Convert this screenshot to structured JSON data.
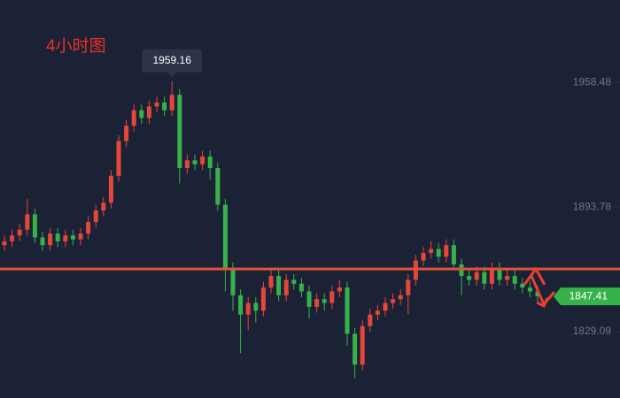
{
  "chart_data": {
    "type": "candlestick",
    "title": "4小时图",
    "open": [
      1874,
      1876,
      1879,
      1882,
      1890,
      1878,
      1874,
      1880,
      1876,
      1879,
      1877,
      1880,
      1886,
      1892,
      1896,
      1910,
      1928,
      1936,
      1944,
      1940,
      1946,
      1948,
      1944,
      1952,
      1914,
      1918,
      1916,
      1920,
      1914,
      1895,
      1862,
      1848,
      1838,
      1844,
      1840,
      1852,
      1858,
      1848,
      1856,
      1854,
      1850,
      1842,
      1846,
      1844,
      1850,
      1852,
      1828,
      1812,
      1832,
      1838,
      1840,
      1844,
      1846,
      1848,
      1856,
      1866,
      1870,
      1872,
      1868,
      1874,
      1864,
      1858,
      1856,
      1860,
      1854,
      1862,
      1856,
      1858,
      1854,
      1852,
      1850
    ],
    "high": [
      1879,
      1882,
      1885,
      1898,
      1893,
      1881,
      1883,
      1883,
      1882,
      1882,
      1883,
      1889,
      1895,
      1899,
      1913,
      1931,
      1939,
      1947,
      1947,
      1949,
      1951,
      1951,
      1959.16,
      1955,
      1921,
      1921,
      1923,
      1923,
      1917,
      1898,
      1865,
      1851,
      1847,
      1847,
      1855,
      1862,
      1861,
      1859,
      1859,
      1857,
      1853,
      1849,
      1849,
      1853,
      1856,
      1855,
      1831,
      1835,
      1841,
      1843,
      1847,
      1849,
      1851,
      1859,
      1869,
      1873,
      1876,
      1875,
      1877,
      1877,
      1867,
      1861,
      1863,
      1863,
      1865,
      1865,
      1861,
      1861,
      1857,
      1855,
      1853
    ],
    "low": [
      1871,
      1873,
      1876,
      1879,
      1875,
      1871,
      1871,
      1873,
      1873,
      1874,
      1874,
      1877,
      1883,
      1889,
      1893,
      1907,
      1925,
      1933,
      1937,
      1937,
      1943,
      1941,
      1941,
      1906,
      1911,
      1913,
      1913,
      1908,
      1892,
      1850,
      1840,
      1818,
      1830,
      1834,
      1837,
      1849,
      1845,
      1845,
      1851,
      1847,
      1836,
      1839,
      1840,
      1841,
      1847,
      1822,
      1805,
      1809,
      1829,
      1835,
      1837,
      1841,
      1843,
      1838,
      1853,
      1863,
      1867,
      1865,
      1865,
      1861,
      1848,
      1853,
      1853,
      1851,
      1851,
      1853,
      1853,
      1851,
      1849,
      1847,
      1844
    ],
    "close": [
      1876,
      1879,
      1882,
      1890,
      1878,
      1874,
      1880,
      1876,
      1879,
      1877,
      1880,
      1886,
      1892,
      1896,
      1910,
      1928,
      1936,
      1944,
      1940,
      1946,
      1948,
      1944,
      1952,
      1914,
      1918,
      1916,
      1920,
      1914,
      1895,
      1862,
      1848,
      1838,
      1844,
      1840,
      1852,
      1858,
      1848,
      1856,
      1854,
      1850,
      1842,
      1846,
      1844,
      1850,
      1852,
      1828,
      1812,
      1832,
      1838,
      1840,
      1844,
      1846,
      1848,
      1856,
      1866,
      1870,
      1872,
      1868,
      1874,
      1864,
      1858,
      1856,
      1860,
      1854,
      1862,
      1856,
      1858,
      1854,
      1852,
      1850,
      1847.41
    ],
    "up_color": "#e5463a",
    "down_color": "#37b24a",
    "ylim": [
      1794.7,
      2001.2
    ],
    "yticks": [
      1958.48,
      1893.78,
      1829.09
    ],
    "peak": 1959.16,
    "level": 1861.65,
    "level_color": "#e0533b",
    "last_price": 1847.41
  }
}
